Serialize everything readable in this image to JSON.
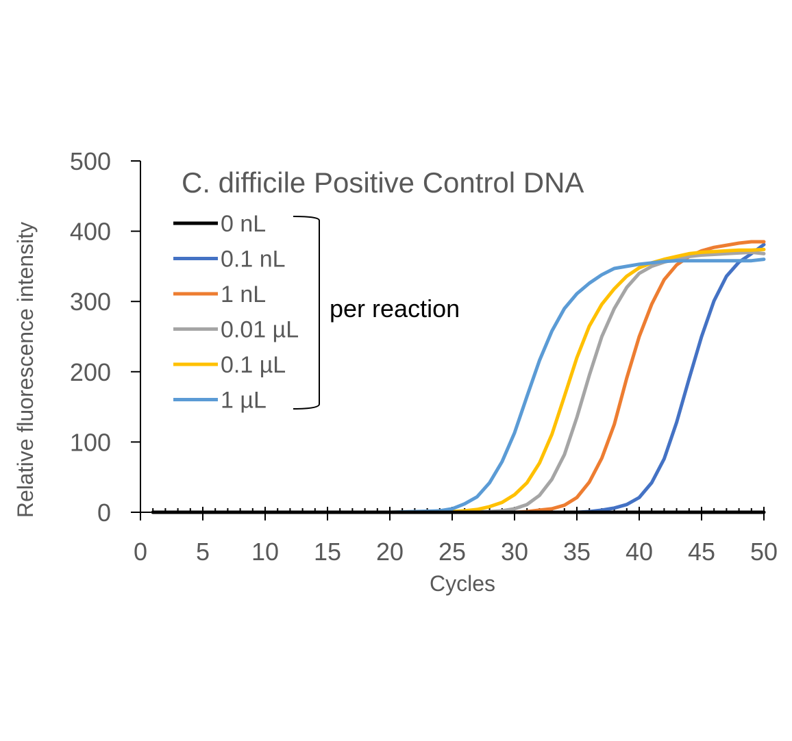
{
  "chart_data": {
    "type": "line",
    "title": "C. difficile Positive Control DNA",
    "xlabel": "Cycles",
    "ylabel": "Relative fluorescence intensity",
    "xlim": [
      0,
      50
    ],
    "ylim": [
      0,
      500
    ],
    "xticks": [
      0,
      5,
      10,
      15,
      20,
      25,
      30,
      35,
      40,
      45,
      50
    ],
    "yticks": [
      0,
      100,
      200,
      300,
      400,
      500
    ],
    "grid": false,
    "legend_position": "top-left",
    "annotation": "per reaction",
    "series": [
      {
        "name": "0 nL",
        "color": "#000000",
        "x": [
          1,
          5,
          10,
          15,
          20,
          25,
          30,
          35,
          40,
          45,
          50
        ],
        "y": [
          0,
          0,
          0,
          0,
          0,
          0,
          0,
          0,
          0,
          0,
          0
        ]
      },
      {
        "name": "0.1 nL",
        "color": "#4472C4",
        "x": [
          1,
          5,
          10,
          15,
          20,
          25,
          30,
          35,
          36,
          37,
          38,
          39,
          40,
          41,
          42,
          43,
          44,
          45,
          46,
          47,
          48,
          49,
          50
        ],
        "y": [
          0,
          0,
          0,
          0,
          0,
          0,
          0,
          0,
          1,
          3,
          6,
          11,
          21,
          42,
          76,
          128,
          190,
          250,
          301,
          336,
          356,
          368,
          381
        ]
      },
      {
        "name": "1 nL",
        "color": "#ED7D31",
        "x": [
          1,
          5,
          10,
          15,
          20,
          25,
          30,
          31,
          32,
          33,
          34,
          35,
          36,
          37,
          38,
          39,
          40,
          41,
          42,
          43,
          44,
          45,
          46,
          47,
          48,
          49,
          50
        ],
        "y": [
          0,
          0,
          0,
          0,
          0,
          0,
          0,
          1,
          3,
          5,
          10,
          21,
          43,
          77,
          125,
          191,
          250,
          296,
          331,
          352,
          364,
          372,
          377,
          380,
          383,
          385,
          385
        ]
      },
      {
        "name": "0.01 µL",
        "color": "#A5A5A5",
        "x": [
          1,
          5,
          10,
          15,
          20,
          25,
          28,
          29,
          30,
          31,
          32,
          33,
          34,
          35,
          36,
          37,
          38,
          39,
          40,
          41,
          42,
          43,
          44,
          45,
          46,
          47,
          48,
          49,
          50
        ],
        "y": [
          0,
          0,
          0,
          0,
          0,
          0,
          1,
          2,
          5,
          11,
          24,
          47,
          82,
          135,
          195,
          250,
          290,
          320,
          340,
          350,
          356,
          360,
          364,
          366,
          367,
          368,
          369,
          370,
          368
        ]
      },
      {
        "name": "0.1 µL",
        "color": "#FFC000",
        "x": [
          1,
          5,
          10,
          15,
          20,
          25,
          26,
          27,
          28,
          29,
          30,
          31,
          32,
          33,
          34,
          35,
          36,
          37,
          38,
          39,
          40,
          41,
          42,
          43,
          44,
          45,
          46,
          47,
          48,
          49,
          50
        ],
        "y": [
          0,
          0,
          0,
          0,
          0,
          1,
          2,
          4,
          8,
          14,
          25,
          42,
          70,
          111,
          165,
          220,
          265,
          296,
          318,
          336,
          348,
          355,
          360,
          364,
          368,
          370,
          371,
          372,
          373,
          373,
          374
        ]
      },
      {
        "name": "1 µL",
        "color": "#5B9BD5",
        "x": [
          1,
          5,
          10,
          15,
          20,
          24,
          25,
          26,
          27,
          28,
          29,
          30,
          31,
          32,
          33,
          34,
          35,
          36,
          37,
          38,
          39,
          40,
          41,
          42,
          43,
          44,
          45,
          46,
          47,
          48,
          49,
          50
        ],
        "y": [
          0,
          0,
          0,
          0,
          0,
          2,
          5,
          12,
          22,
          42,
          72,
          113,
          165,
          216,
          258,
          290,
          311,
          326,
          338,
          347,
          350,
          353,
          355,
          357,
          358,
          358,
          358,
          358,
          358,
          358,
          358,
          360
        ]
      }
    ]
  }
}
